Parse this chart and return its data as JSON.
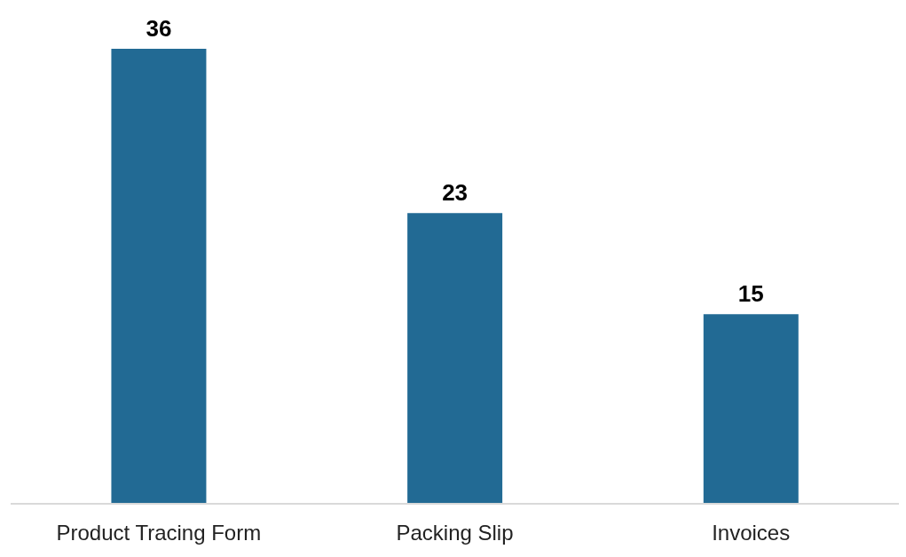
{
  "chart_data": {
    "type": "bar",
    "categories": [
      "Product Tracing Form",
      "Packing Slip",
      "Invoices"
    ],
    "values": [
      36,
      23,
      15
    ],
    "color": "#226a94",
    "data_labels": true,
    "grid": false,
    "tick_labels": "x"
  }
}
